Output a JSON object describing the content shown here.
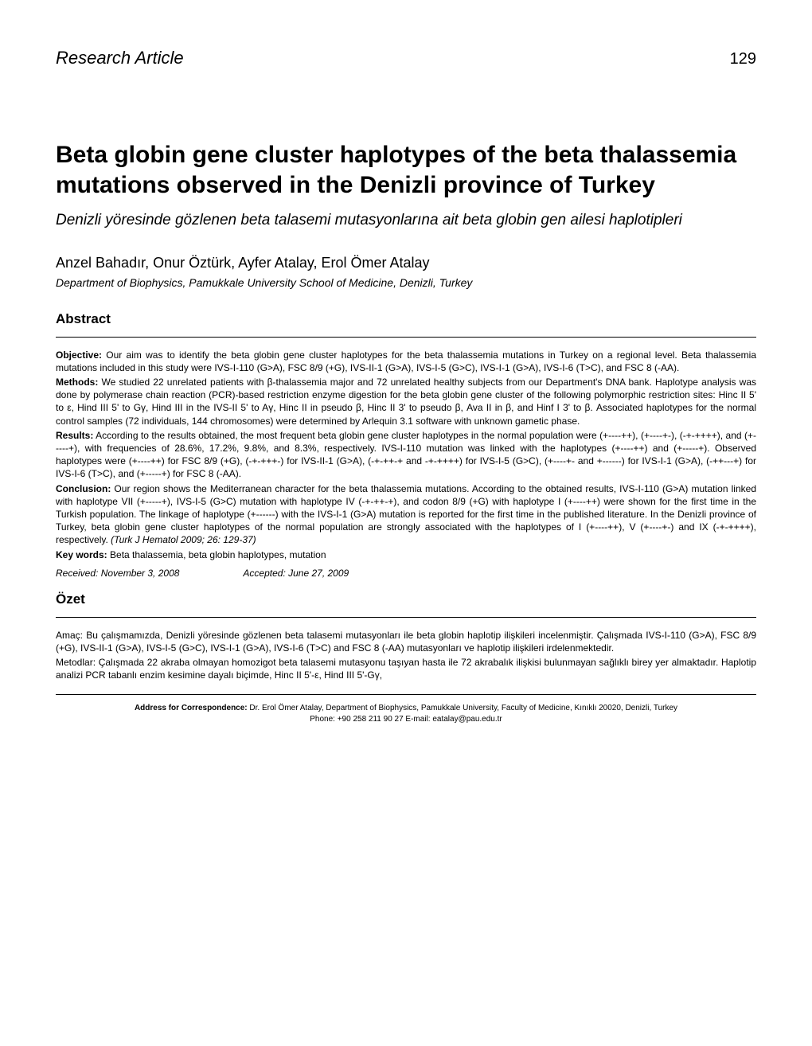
{
  "header": {
    "article_type": "Research Article",
    "page_number": "129"
  },
  "title": "Beta globin gene cluster haplotypes of the beta thalassemia mutations observed in the Denizli province of Turkey",
  "subtitle": "Denizli yöresinde gözlenen beta talasemi mutasyonlarına ait beta globin gen ailesi haplotipleri",
  "authors": "Anzel Bahadır, Onur Öztürk, Ayfer Atalay, Erol Ömer Atalay",
  "affiliation": "Department of Biophysics, Pamukkale University School of Medicine, Denizli, Turkey",
  "abstract": {
    "heading": "Abstract",
    "objective_label": "Objective:",
    "objective_text": " Our aim was to identify the beta globin gene cluster haplotypes for the beta thalassemia mutations in Turkey on a regional level. Beta thalassemia mutations included in this study were IVS-I-110 (G>A), FSC 8/9 (+G), IVS-II-1 (G>A), IVS-I-5 (G>C), IVS-I-1 (G>A), IVS-I-6 (T>C), and FSC 8 (-AA).",
    "methods_label": "Methods:",
    "methods_text": " We studied 22 unrelated patients with β-thalassemia major and 72 unrelated healthy subjects from our Department's DNA bank. Haplotype analysis was done by polymerase chain reaction (PCR)-based restriction enzyme digestion for the beta globin gene cluster of the following polymorphic restriction sites: Hinc II 5' to ε, Hind III 5' to Gγ, Hind III in the IVS-II 5' to Aγ, Hinc II in pseudo β, Hinc II 3' to pseudo β, Ava II in β, and Hinf I 3' to β. Associated haplotypes for the normal control samples (72 individuals, 144 chromosomes) were determined by Arlequin 3.1 software with unknown gametic phase.",
    "results_label": "Results:",
    "results_text": " According to the results obtained, the most frequent beta globin gene cluster haplotypes in the normal population were (+----++), (+----+-), (-+-++++), and (+-----+), with frequencies of 28.6%, 17.2%, 9.8%, and 8.3%, respectively. IVS-I-110 mutation was linked with the haplotypes (+----++) and (+-----+). Observed haplotypes were (+----++) for FSC 8/9 (+G), (-+-+++-) for IVS-II-1 (G>A), (-+-++-+ and -+-++++) for IVS-I-5 (G>C), (+----+- and +------) for IVS-I-1 (G>A), (-++---+) for IVS-I-6 (T>C), and (+-----+) for FSC 8 (-AA).",
    "conclusion_label": "Conclusion:",
    "conclusion_text": " Our region shows the Mediterranean character for the beta thalassemia mutations. According to the obtained results, IVS-I-110 (G>A) mutation linked with haplotype VII (+-----+), IVS-I-5 (G>C) mutation with haplotype IV (-+-++-+), and codon 8/9 (+G) with haplotype I (+----++) were shown for the first time in the Turkish population. The linkage of haplotype (+------) with the IVS-I-1 (G>A) mutation is reported for the first time in the published literature. In the Denizli province of Turkey, beta globin gene cluster haplotypes of the normal population are strongly associated with the haplotypes of I (+----++), V (+----+-) and IX (-+-++++), respectively. ",
    "citation": "(Turk J Hematol 2009; 26: 129-37)",
    "keywords_label": "Key words:",
    "keywords_text": " Beta thalassemia, beta globin haplotypes, mutation",
    "received": "Received: November 3, 2008",
    "accepted": "Accepted: June 27, 2009"
  },
  "ozet": {
    "heading": "Özet",
    "amac_label": "Amaç:",
    "amac_text": " Bu çalışmamızda, Denizli yöresinde gözlenen beta talasemi mutasyonları ile beta globin haplotip ilişkileri incelenmiştir. Çalışmada IVS-I-110 (G>A), FSC 8/9 (+G), IVS-II-1 (G>A), IVS-I-5 (G>C), IVS-I-1 (G>A), IVS-I-6 (T>C) and FSC 8 (-AA) mutasyonları ve haplotip ilişkileri irdelenmektedir.",
    "metodlar_label": "Metodlar:",
    "metodlar_text": " Çalışmada 22 akraba olmayan homozigot beta talasemi mutasyonu taşıyan hasta ile 72 akrabalık ilişkisi bulunmayan sağlıklı birey yer almaktadır. Haplotip analizi PCR tabanlı enzim kesimine dayalı biçimde, Hinc II 5'-ε, Hind III 5'-Gγ,"
  },
  "correspondence": {
    "label": "Address for Correspondence:",
    "text": " Dr. Erol Ömer Atalay, Department of Biophysics, Pamukkale University, Faculty of Medicine, Kınıklı 20020, Denizli, Turkey",
    "line2": "Phone: +90 258 211 90 27  E-mail: eatalay@pau.edu.tr"
  }
}
